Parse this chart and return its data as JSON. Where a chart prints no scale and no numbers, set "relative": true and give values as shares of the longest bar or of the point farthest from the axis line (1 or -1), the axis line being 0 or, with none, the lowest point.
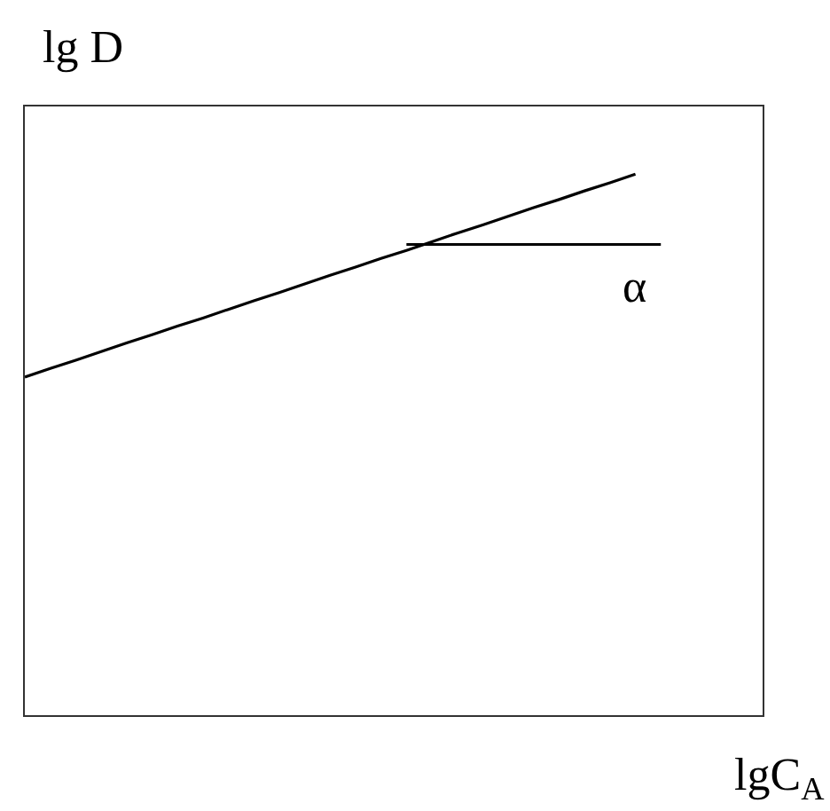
{
  "chart_data": {
    "type": "line",
    "relative": true,
    "xlabel": "lgC$_{A}$",
    "ylabel": "lg D",
    "annotations": [
      "α"
    ],
    "categories": [
      null,
      null,
      null,
      null,
      null,
      null,
      null,
      null,
      null,
      null,
      null,
      null,
      null,
      null,
      null,
      null,
      null,
      null,
      null,
      null,
      null,
      null,
      null,
      null,
      null,
      null,
      null,
      null,
      null,
      null
    ],
    "series": [
      {
        "color": "#000000",
        "values": [
          0.625,
          0.641,
          0.656,
          0.672,
          0.688,
          0.703,
          0.719,
          0.734,
          0.75,
          0.766,
          0.781,
          0.797,
          0.813,
          0.828,
          0.844,
          0.859,
          0.875,
          0.891,
          0.906,
          0.922,
          0.938,
          0.953,
          0.969,
          0.984,
          1,
          null,
          null,
          null,
          null,
          null
        ]
      },
      {
        "color": "#000000",
        "values": [
          null,
          null,
          null,
          null,
          null,
          null,
          null,
          null,
          null,
          null,
          null,
          null,
          null,
          null,
          null,
          0.87,
          0.87,
          0.87,
          0.87,
          0.87,
          0.87,
          0.87,
          0.87,
          0.87,
          0.87,
          0.87,
          null,
          null,
          null,
          null
        ]
      }
    ]
  }
}
